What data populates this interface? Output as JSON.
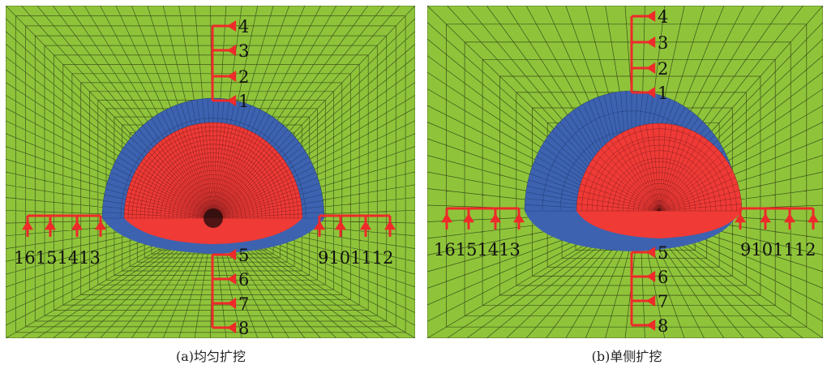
{
  "colors": {
    "mesh_green": "#8fc43a",
    "mesh_line": "#1e2a12",
    "outer_zone_blue": "#3d62b0",
    "inner_zone_red": "#ef3a36",
    "monitor_arrow_red": "#ee2a2a"
  },
  "panels": [
    {
      "id": "a",
      "caption": "(a)均匀扩挖",
      "point_labels": {
        "top": [
          "4",
          "3",
          "2",
          "1"
        ],
        "bottom": [
          "5",
          "6",
          "7",
          "8"
        ],
        "left": "16151413",
        "right": "9101112"
      }
    },
    {
      "id": "b",
      "caption": "(b)单侧扩挖",
      "point_labels": {
        "top": [
          "4",
          "3",
          "2",
          "1"
        ],
        "bottom": [
          "5",
          "6",
          "7",
          "8"
        ],
        "left": "16151413",
        "right": "9101112"
      }
    }
  ]
}
